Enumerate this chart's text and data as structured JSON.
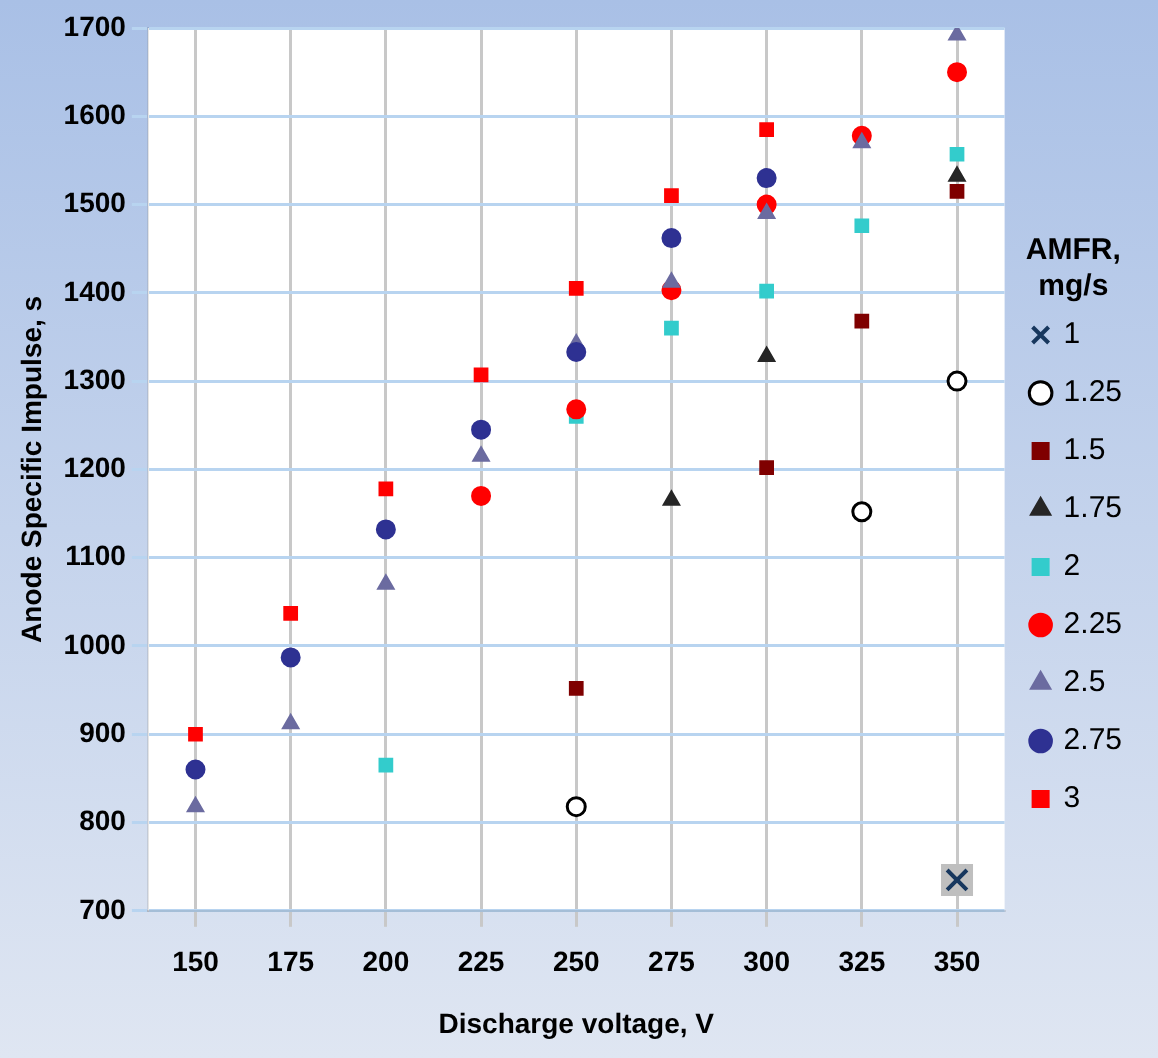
{
  "chart_data": {
    "type": "scatter",
    "xlabel": "Discharge voltage, V",
    "ylabel": "Anode Specific Impulse, s",
    "legend_title": "AMFR, mg/s",
    "categories": [
      "150",
      "175",
      "200",
      "225",
      "250",
      "275",
      "300",
      "325",
      "350"
    ],
    "ylim": [
      700,
      1700
    ],
    "yticks": [
      700,
      800,
      900,
      1000,
      1100,
      1200,
      1300,
      1400,
      1500,
      1600,
      1700
    ],
    "grid": true,
    "legend": "right",
    "series": [
      {
        "name": "1",
        "color": "#17375e",
        "marker": "cross",
        "values": [
          null,
          null,
          null,
          null,
          null,
          null,
          null,
          null,
          735
        ]
      },
      {
        "name": "1.25",
        "color": "#000000",
        "marker": "circle",
        "values": [
          null,
          null,
          null,
          null,
          818,
          null,
          null,
          1152,
          1300
        ]
      },
      {
        "name": "1.5",
        "color": "#7f0000",
        "marker": "square",
        "values": [
          null,
          null,
          null,
          null,
          952,
          null,
          1202,
          1368,
          1515
        ]
      },
      {
        "name": "1.75",
        "color": "#262626",
        "marker": "triangle",
        "values": [
          null,
          null,
          null,
          null,
          null,
          1165,
          1328,
          null,
          1532
        ]
      },
      {
        "name": "2",
        "color": "#33cccc",
        "marker": "square",
        "values": [
          null,
          null,
          865,
          null,
          1260,
          1360,
          1402,
          1476,
          1557
        ]
      },
      {
        "name": "2.25",
        "color": "#ff0000",
        "marker": "circle",
        "values": [
          null,
          null,
          null,
          1170,
          1268,
          1403,
          1500,
          1578,
          1650
        ]
      },
      {
        "name": "2.5",
        "color": "#6b6ba0",
        "marker": "triangle",
        "values": [
          818,
          912,
          1070,
          1215,
          1342,
          1412,
          1490,
          1570,
          1692
        ]
      },
      {
        "name": "2.75",
        "color": "#2e3192",
        "marker": "circle",
        "values": [
          860,
          987,
          1132,
          1245,
          1333,
          1462,
          1530,
          null,
          null
        ]
      },
      {
        "name": "3",
        "color": "#ff0000",
        "marker": "square",
        "values": [
          900,
          1037,
          1178,
          1307,
          1405,
          1510,
          1585,
          null,
          null
        ]
      }
    ]
  }
}
